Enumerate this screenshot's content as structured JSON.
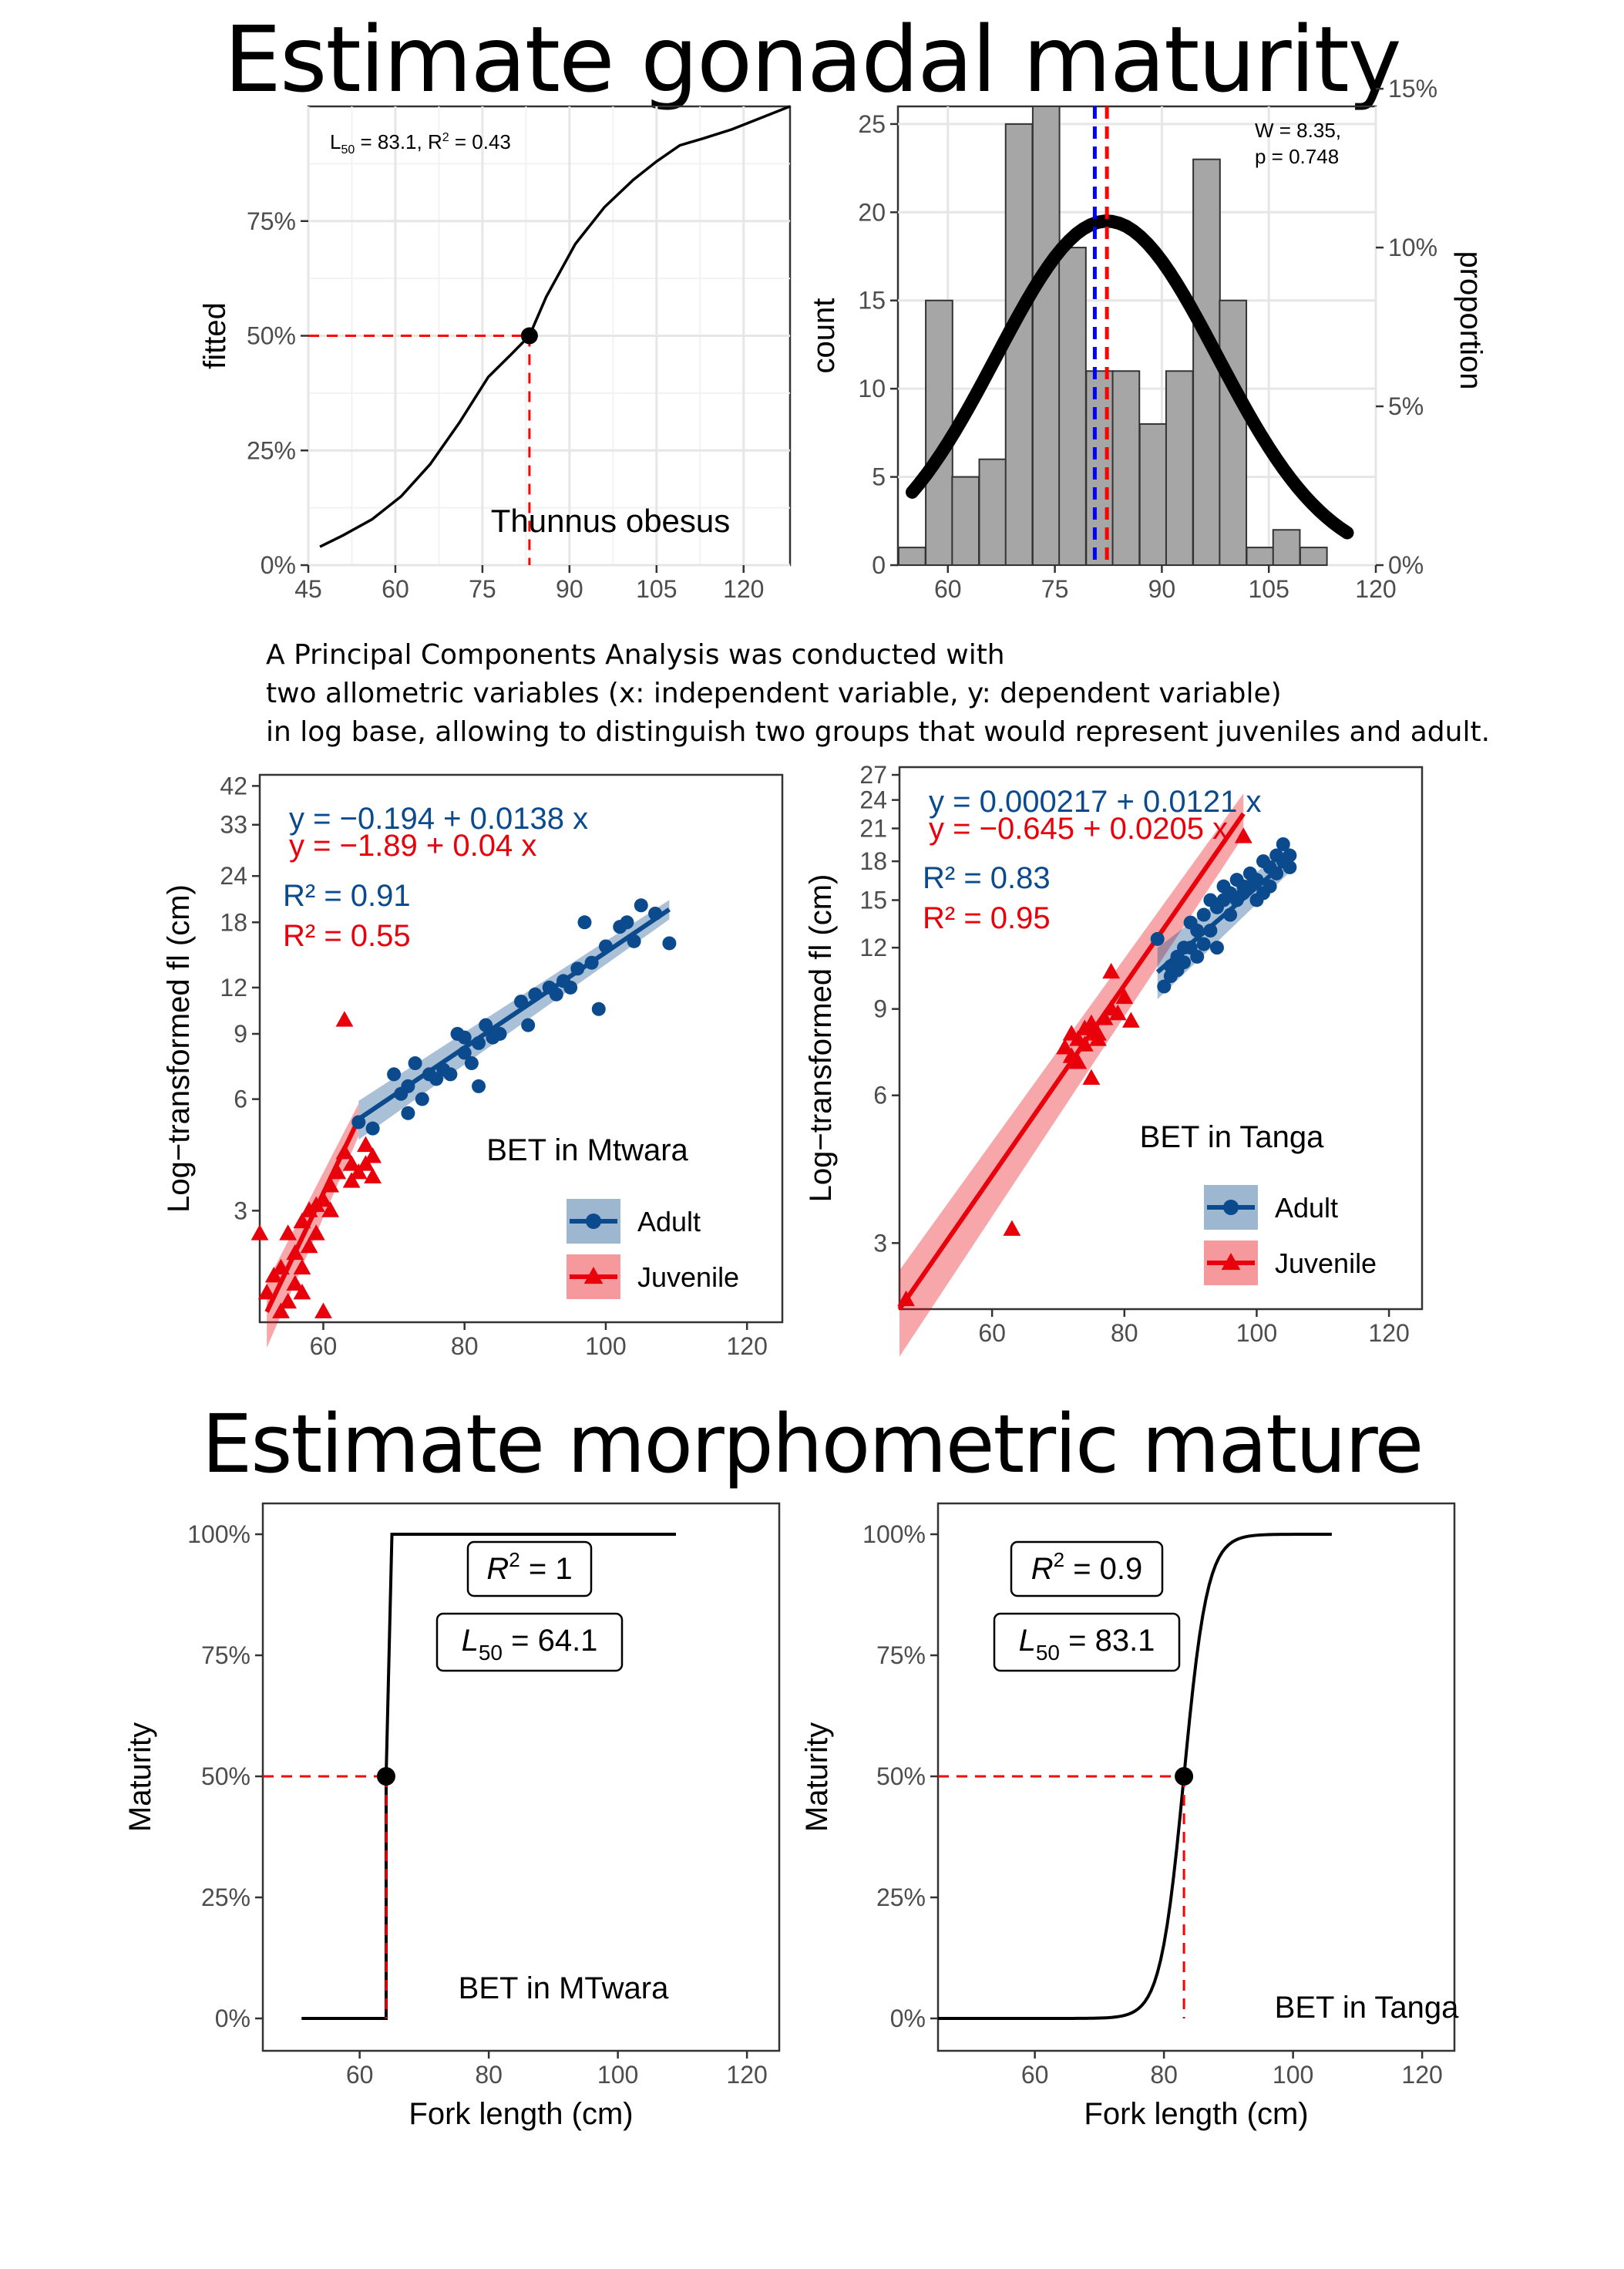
{
  "headings": {
    "top": "Estimate gonadal maturity",
    "bottom": "Estimate morphometric mature"
  },
  "pca_text": [
    "A Principal Components Analysis was conducted with",
    "two allometric variables (x: independent variable, y: dependent variable)",
    "in log base, allowing to distinguish two groups that would represent juveniles and adult."
  ],
  "colors": {
    "adult": "#0b4a8c",
    "juvenile": "#e8000b",
    "bar_fill": "#a6a6a6",
    "blue_line": "#0000ff",
    "red_line": "#ff0000"
  },
  "chart_data": [
    {
      "id": "gonadal-logistic",
      "type": "line",
      "title": "",
      "xlabel": "",
      "ylabel": "fitted",
      "xlim": [
        45,
        128
      ],
      "ylim": [
        0,
        1
      ],
      "x_ticks": [
        "45",
        "60",
        "75",
        "90",
        "105",
        "120"
      ],
      "y_ticks": [
        "0%",
        "25%",
        "50%",
        "75%"
      ],
      "annotation_text": "L50 = 83.1, R² = 0.43",
      "annotation_l50": "83.1",
      "annotation_r2": "0.43",
      "species_label": "Thunnus obesus",
      "l50": 83.1,
      "series": [
        {
          "x": [
            47,
            51,
            56,
            61,
            66,
            71,
            76,
            80,
            83.1,
            86,
            91,
            96,
            101,
            105,
            109,
            113,
            118,
            123,
            128
          ],
          "y": [
            0.04,
            0.065,
            0.1,
            0.15,
            0.22,
            0.31,
            0.41,
            0.46,
            0.5,
            0.585,
            0.7,
            0.78,
            0.84,
            0.88,
            0.915,
            0.93,
            0.95,
            0.975,
            1.0
          ]
        }
      ]
    },
    {
      "id": "gonadal-histogram",
      "type": "bar",
      "title": "",
      "xlabel": "",
      "ylabel": "count",
      "ylabel_right": "proportion",
      "xlim": [
        53,
        120
      ],
      "ylim": [
        0,
        26
      ],
      "x_ticks": [
        "60",
        "75",
        "90",
        "105",
        "120"
      ],
      "y_ticks": [
        "0",
        "5",
        "10",
        "15",
        "20",
        "25"
      ],
      "y_ticks_right": [
        "0%",
        "5%",
        "10%",
        "15%"
      ],
      "bin_width": 3.75,
      "bin_starts": [
        53.1,
        56.9,
        60.6,
        64.4,
        68.1,
        71.9,
        75.6,
        79.4,
        83.1,
        86.9,
        90.6,
        94.4,
        98.1,
        101.9,
        105.6,
        109.4
      ],
      "values": [
        1,
        15,
        5,
        6,
        25,
        27,
        18,
        11,
        11,
        8,
        11,
        23,
        15,
        1,
        2,
        1
      ],
      "annotation_w": "W = 8.35,",
      "annotation_p": "p = 0.748",
      "blue_dashed_x": 80.6,
      "red_dashed_x": 82.3,
      "normal_curve": {
        "mean": 82.3,
        "sd": 15.5,
        "peak": 19.5,
        "x_from": 55,
        "x_to": 116
      }
    },
    {
      "id": "pca-mtwara",
      "type": "scatter",
      "title": "",
      "xlabel": "",
      "ylabel": "Log−transformed fl (cm)",
      "xlim": [
        51,
        125
      ],
      "ylim_log": [
        1.5,
        45
      ],
      "x_ticks": [
        "60",
        "80",
        "100",
        "120"
      ],
      "y_ticks": [
        "3",
        "6",
        "9",
        "12",
        "18",
        "24",
        "33",
        "42"
      ],
      "location_label": "BET in Mtwara",
      "eq_adult": "y = −0.194 + 0.0138 x",
      "eq_juvenile": "y = −1.89 + 0.04 x",
      "r2_adult": "R² = 0.91",
      "r2_juvenile": "R² = 0.55",
      "legend": [
        "Adult",
        "Juvenile"
      ],
      "series": [
        {
          "name": "Adult",
          "fit": [
            [
              65,
              5.3
            ],
            [
              109,
              19.5
            ]
          ],
          "points": [
            [
              65,
              5.2
            ],
            [
              67,
              5.0
            ],
            [
              70,
              7.0
            ],
            [
              71,
              6.2
            ],
            [
              72,
              5.5
            ],
            [
              72,
              6.5
            ],
            [
              73,
              7.5
            ],
            [
              74,
              6.0
            ],
            [
              75,
              7.0
            ],
            [
              76,
              6.8
            ],
            [
              77,
              7.2
            ],
            [
              78,
              7.0
            ],
            [
              79,
              9.0
            ],
            [
              80,
              8.0
            ],
            [
              80,
              8.8
            ],
            [
              81,
              7.5
            ],
            [
              82,
              8.5
            ],
            [
              82,
              6.5
            ],
            [
              83,
              9.5
            ],
            [
              84,
              8.8
            ],
            [
              85,
              9.0
            ],
            [
              88,
              11.0
            ],
            [
              89,
              9.5
            ],
            [
              90,
              11.5
            ],
            [
              92,
              12.0
            ],
            [
              93,
              11.5
            ],
            [
              94,
              12.5
            ],
            [
              95,
              12.0
            ],
            [
              96,
              13.5
            ],
            [
              97,
              18.0
            ],
            [
              98,
              14.0
            ],
            [
              99,
              10.5
            ],
            [
              100,
              15.5
            ],
            [
              102,
              17.5
            ],
            [
              103,
              18.0
            ],
            [
              104,
              16.0
            ],
            [
              105,
              20.0
            ],
            [
              107,
              19.0
            ],
            [
              109,
              15.8
            ]
          ]
        },
        {
          "name": "Juvenile",
          "fit": [
            [
              52,
              1.6
            ],
            [
              65,
              5.3
            ]
          ],
          "points": [
            [
              51,
              2.6
            ],
            [
              52,
              1.8
            ],
            [
              53,
              2.0
            ],
            [
              54,
              1.6
            ],
            [
              54,
              2.1
            ],
            [
              55,
              1.7
            ],
            [
              55,
              2.6
            ],
            [
              56,
              1.9
            ],
            [
              56,
              2.3
            ],
            [
              57,
              2.1
            ],
            [
              57,
              2.8
            ],
            [
              57,
              1.8
            ],
            [
              58,
              2.4
            ],
            [
              58,
              3.0
            ],
            [
              59,
              2.6
            ],
            [
              59,
              3.1
            ],
            [
              60,
              3.2
            ],
            [
              60,
              1.6
            ],
            [
              61,
              3.0
            ],
            [
              61,
              3.5
            ],
            [
              62,
              3.8
            ],
            [
              63,
              4.3
            ],
            [
              63,
              9.8
            ],
            [
              64,
              4.0
            ],
            [
              64,
              3.6
            ],
            [
              65,
              3.8
            ],
            [
              66,
              4.5
            ],
            [
              66,
              4.0
            ],
            [
              67,
              3.7
            ],
            [
              67,
              4.2
            ]
          ]
        }
      ]
    },
    {
      "id": "pca-tanga",
      "type": "scatter",
      "title": "",
      "xlabel": "",
      "ylabel": "Log−transformed fl (cm)",
      "xlim": [
        46,
        125
      ],
      "ylim_log": [
        2.2,
        28
      ],
      "x_ticks": [
        "60",
        "80",
        "100",
        "120"
      ],
      "y_ticks": [
        "3",
        "6",
        "9",
        "12",
        "15",
        "18",
        "21",
        "24",
        "27"
      ],
      "location_label": "BET in Tanga",
      "eq_adult": "y = 0.000217 + 0.0121 x",
      "eq_juvenile": "y = −0.645 + 0.0205 x",
      "r2_adult": "R² = 0.83",
      "r2_juvenile": "R² = 0.95",
      "legend": [
        "Adult",
        "Juvenile"
      ],
      "series": [
        {
          "name": "Adult",
          "fit": [
            [
              85,
              10.7
            ],
            [
              105,
              18.2
            ]
          ],
          "points": [
            [
              85,
              12.5
            ],
            [
              86,
              10.0
            ],
            [
              87,
              11.0
            ],
            [
              87,
              10.5
            ],
            [
              88,
              11.5
            ],
            [
              88,
              10.8
            ],
            [
              89,
              12.0
            ],
            [
              89,
              11.2
            ],
            [
              90,
              12.0
            ],
            [
              90,
              13.5
            ],
            [
              91,
              11.5
            ],
            [
              91,
              13.0
            ],
            [
              92,
              14.0
            ],
            [
              92,
              12.2
            ],
            [
              93,
              15.0
            ],
            [
              93,
              13.0
            ],
            [
              94,
              14.5
            ],
            [
              94,
              12.0
            ],
            [
              95,
              15.0
            ],
            [
              95,
              16.0
            ],
            [
              96,
              14.0
            ],
            [
              96,
              15.5
            ],
            [
              97,
              16.5
            ],
            [
              97,
              15.0
            ],
            [
              98,
              16.0
            ],
            [
              98,
              15.5
            ],
            [
              99,
              17.0
            ],
            [
              99,
              16.0
            ],
            [
              100,
              16.5
            ],
            [
              100,
              15.0
            ],
            [
              101,
              18.0
            ],
            [
              101,
              15.5
            ],
            [
              102,
              16.0
            ],
            [
              102,
              17.5
            ],
            [
              103,
              18.5
            ],
            [
              103,
              17.0
            ],
            [
              104,
              19.5
            ],
            [
              104,
              18.0
            ],
            [
              105,
              17.5
            ],
            [
              105,
              18.5
            ]
          ]
        },
        {
          "name": "Juvenile",
          "fit": [
            [
              46,
              2.2
            ],
            [
              98,
              22.5
            ]
          ],
          "points": [
            [
              47,
              2.3
            ],
            [
              63,
              3.2
            ],
            [
              71,
              7.5
            ],
            [
              72,
              7.2
            ],
            [
              72,
              8.0
            ],
            [
              73,
              7.8
            ],
            [
              73,
              7.0
            ],
            [
              74,
              8.2
            ],
            [
              74,
              7.6
            ],
            [
              75,
              8.4
            ],
            [
              75,
              6.5
            ],
            [
              76,
              7.8
            ],
            [
              76,
              8.0
            ],
            [
              77,
              8.6
            ],
            [
              78,
              10.7
            ],
            [
              78,
              9.0
            ],
            [
              79,
              8.8
            ],
            [
              80,
              9.5
            ],
            [
              81,
              8.5
            ],
            [
              98,
              20.2
            ]
          ]
        }
      ]
    },
    {
      "id": "morph-mtwara",
      "type": "line",
      "title": "",
      "xlabel": "Fork length (cm)",
      "ylabel": "Maturity",
      "xlim": [
        45,
        125
      ],
      "ylim": [
        0,
        1
      ],
      "x_ticks": [
        "60",
        "80",
        "100",
        "120"
      ],
      "y_ticks": [
        "0%",
        "25%",
        "50%",
        "75%",
        "100%"
      ],
      "r2_label": "= 1",
      "l50_label": "= 64.1",
      "location_label": "BET in MTwara",
      "l50": 64.1,
      "series": [
        {
          "x": [
            51,
            64.1,
            64.1,
            65,
            109
          ],
          "y": [
            0,
            0,
            0.5,
            1,
            1
          ]
        }
      ]
    },
    {
      "id": "morph-tanga",
      "type": "line",
      "title": "",
      "xlabel": "Fork length (cm)",
      "ylabel": "Maturity",
      "xlim": [
        45,
        125
      ],
      "ylim": [
        0,
        1
      ],
      "x_ticks": [
        "60",
        "80",
        "100",
        "120"
      ],
      "y_ticks": [
        "0%",
        "25%",
        "50%",
        "75%",
        "100%"
      ],
      "r2_label": "= 0.9",
      "l50_label": "= 83.1",
      "location_label": "BET in Tanga",
      "l50": 83.1,
      "logistic": {
        "k": 0.55,
        "x_from": 45,
        "x_to": 106
      }
    }
  ]
}
